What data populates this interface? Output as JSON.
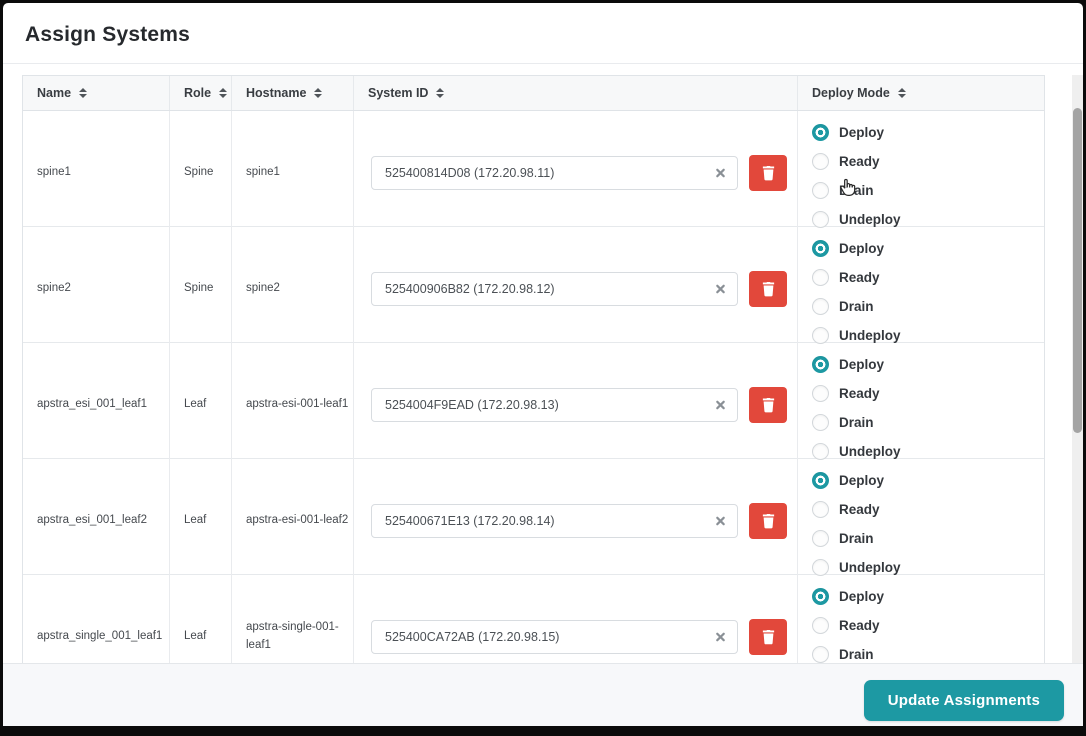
{
  "page_title": "Assign Systems",
  "colors": {
    "accent": "#1d99a3",
    "danger": "#e2483b"
  },
  "icons": {
    "sort": "sort-up-down-triangles",
    "clear": "x-cross",
    "delete": "trash-can",
    "cursor": "hand-pointer"
  },
  "table": {
    "columns": [
      {
        "label": "Name",
        "sortable": true
      },
      {
        "label": "Role",
        "sortable": true
      },
      {
        "label": "Hostname",
        "sortable": true
      },
      {
        "label": "System ID",
        "sortable": true
      },
      {
        "label": "Deploy Mode",
        "sortable": true
      }
    ],
    "deploy_mode_options": [
      "Deploy",
      "Ready",
      "Drain",
      "Undeploy"
    ],
    "rows": [
      {
        "name": "spine1",
        "role": "Spine",
        "hostname": "spine1",
        "system_id": "525400814D08 (172.20.98.11)",
        "deploy_mode": "Deploy"
      },
      {
        "name": "spine2",
        "role": "Spine",
        "hostname": "spine2",
        "system_id": "525400906B82 (172.20.98.12)",
        "deploy_mode": "Deploy"
      },
      {
        "name": "apstra_esi_001_leaf1",
        "role": "Leaf",
        "hostname": "apstra-esi-001-leaf1",
        "system_id": "5254004F9EAD (172.20.98.13)",
        "deploy_mode": "Deploy"
      },
      {
        "name": "apstra_esi_001_leaf2",
        "role": "Leaf",
        "hostname": "apstra-esi-001-leaf2",
        "system_id": "525400671E13 (172.20.98.14)",
        "deploy_mode": "Deploy"
      },
      {
        "name": "apstra_single_001_leaf1",
        "role": "Leaf",
        "hostname": "apstra-single-001-leaf1",
        "system_id": "525400CA72AB (172.20.98.15)",
        "deploy_mode": "Deploy"
      }
    ]
  },
  "footer": {
    "update_button_label": "Update Assignments"
  }
}
